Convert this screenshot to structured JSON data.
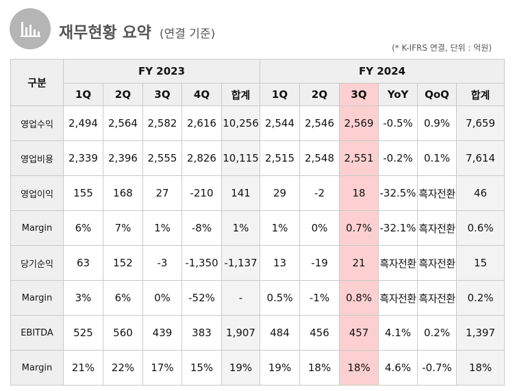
{
  "header": {
    "icon": "bar-chart-icon",
    "title": "재무현황 요약",
    "subtitle": "(연결 기준)",
    "note": "(* K-IFRS 연결, 단위 : 억원)"
  },
  "table": {
    "row_header": "구분",
    "groups": [
      "FY 2023",
      "FY 2024"
    ],
    "columns_2023": [
      "1Q",
      "2Q",
      "3Q",
      "4Q",
      "합계"
    ],
    "columns_2024": [
      "1Q",
      "2Q",
      "3Q",
      "YoY",
      "QoQ",
      "합계"
    ],
    "rows": [
      {
        "label": "영업수익",
        "values": [
          "2,494",
          "2,564",
          "2,582",
          "2,616",
          "10,256",
          "2,544",
          "2,546",
          "2,569",
          "-0.5%",
          "0.9%",
          "7,659"
        ]
      },
      {
        "label": "영업비용",
        "values": [
          "2,339",
          "2,396",
          "2,555",
          "2,826",
          "10,115",
          "2,515",
          "2,548",
          "2,551",
          "-0.2%",
          "0.1%",
          "7,614"
        ]
      },
      {
        "label": "영업이익",
        "values": [
          "155",
          "168",
          "27",
          "-210",
          "141",
          "29",
          "-2",
          "18",
          "-32.5%",
          "흑자전환",
          "46"
        ]
      },
      {
        "label": "Margin",
        "values": [
          "6%",
          "7%",
          "1%",
          "-8%",
          "1%",
          "1%",
          "0%",
          "0.7%",
          "-32.1%",
          "흑자전환",
          "0.6%"
        ]
      },
      {
        "label": "당기순익",
        "values": [
          "63",
          "152",
          "-3",
          "-1,350",
          "-1,137",
          "13",
          "-19",
          "21",
          "흑자전환",
          "흑자전환",
          "15"
        ]
      },
      {
        "label": "Margin",
        "values": [
          "3%",
          "6%",
          "0%",
          "-52%",
          "-",
          "0.5%",
          "-1%",
          "0.8%",
          "흑자전환",
          "흑자전환",
          "0.2%"
        ]
      },
      {
        "label": "EBITDA",
        "values": [
          "525",
          "560",
          "439",
          "383",
          "1,907",
          "484",
          "456",
          "457",
          "4.1%",
          "0.2%",
          "1,397"
        ]
      },
      {
        "label": "Margin",
        "values": [
          "21%",
          "22%",
          "17%",
          "15%",
          "19%",
          "19%",
          "18%",
          "18%",
          "4.6%",
          "-0.7%",
          "18%"
        ]
      }
    ]
  },
  "colors": {
    "highlight": "#fcd0d0",
    "header_bg": "#efefef",
    "total_bg": "#f3f3f3",
    "logo_bg": "#b5b5b5"
  }
}
